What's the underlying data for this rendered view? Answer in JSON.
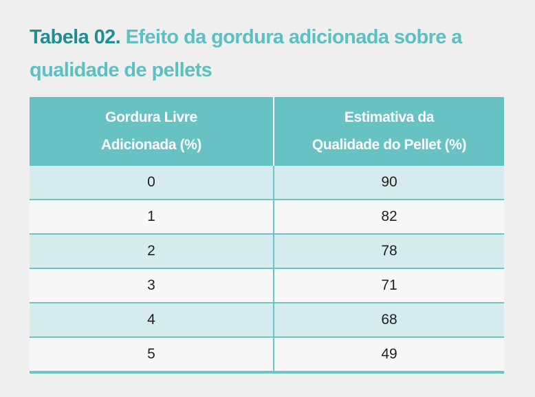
{
  "title": {
    "label": "Tabela 02.",
    "text": "Efeito da gordura adicionada sobre a qualidade de pellets"
  },
  "table": {
    "headers": [
      {
        "line1": "Gordura Livre",
        "line2": "Adicionada (%)"
      },
      {
        "line1": "Estimativa da",
        "line2": "Qualidade do Pellet (%)"
      }
    ],
    "rows": [
      [
        "0",
        "90"
      ],
      [
        "1",
        "82"
      ],
      [
        "2",
        "78"
      ],
      [
        "3",
        "71"
      ],
      [
        "4",
        "68"
      ],
      [
        "5",
        "49"
      ]
    ]
  },
  "colors": {
    "title_label": "#1e8e91",
    "title_text": "#5cbfc1",
    "header_bg": "#67c2c3",
    "row_alt_bg": "#d5ebee",
    "row_bg": "#f7f7f7",
    "rule": "#6cc3c5"
  }
}
